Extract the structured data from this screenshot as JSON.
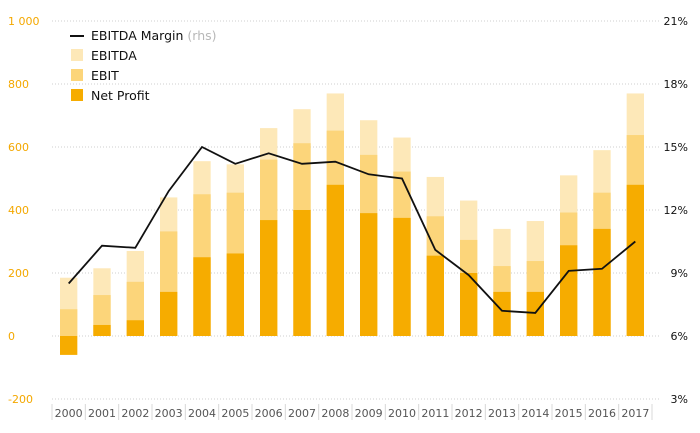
{
  "chart_data": {
    "type": "bar",
    "stacked_overlay": true,
    "categories": [
      "2000",
      "2001",
      "2002",
      "2003",
      "2004",
      "2005",
      "2006",
      "2007",
      "2008",
      "2009",
      "2010",
      "2011",
      "2012",
      "2013",
      "2014",
      "2015",
      "2016",
      "2017"
    ],
    "series": [
      {
        "name": "EBITDA",
        "kind": "bar",
        "color": "#fde8b8",
        "values": [
          185,
          215,
          270,
          440,
          555,
          545,
          660,
          720,
          770,
          685,
          630,
          505,
          430,
          340,
          365,
          510,
          590,
          770
        ]
      },
      {
        "name": "EBIT",
        "kind": "bar",
        "color": "#fcd57a",
        "values": [
          85,
          130,
          172,
          332,
          450,
          455,
          560,
          612,
          652,
          575,
          522,
          380,
          305,
          222,
          238,
          392,
          455,
          638
        ]
      },
      {
        "name": "Net Profit",
        "kind": "bar",
        "color": "#f6ac00",
        "values": [
          -60,
          35,
          50,
          140,
          250,
          262,
          368,
          400,
          480,
          390,
          375,
          255,
          200,
          140,
          140,
          288,
          340,
          480
        ]
      },
      {
        "name": "EBITDA Margin",
        "name_suffix": "(rhs)",
        "kind": "line",
        "axis": "right",
        "color": "#111111",
        "values": [
          8.5,
          10.3,
          10.2,
          12.9,
          15.0,
          14.2,
          14.7,
          14.2,
          14.3,
          13.7,
          13.5,
          10.1,
          8.9,
          7.2,
          7.1,
          9.1,
          9.2,
          10.5
        ]
      }
    ],
    "y_left": {
      "ylim": [
        -200,
        1000
      ],
      "ticks": [
        -200,
        0,
        200,
        400,
        600,
        800,
        1000
      ],
      "tick_labels": [
        "-200",
        "0",
        "200",
        "400",
        "600",
        "800",
        "1 000"
      ]
    },
    "y_right": {
      "ylim": [
        3,
        21
      ],
      "ticks": [
        3,
        6,
        9,
        12,
        15,
        18,
        21
      ],
      "tick_labels": [
        "3%",
        "6%",
        "9%",
        "12%",
        "15%",
        "18%",
        "21%"
      ]
    },
    "grid": "horizontal-dotted",
    "legend_position": "top-left",
    "colors": {
      "left_axis_text": "#f4a800",
      "right_axis_text": "#111111",
      "x_axis_text": "#555555",
      "grid": "#cfcfcf"
    }
  }
}
